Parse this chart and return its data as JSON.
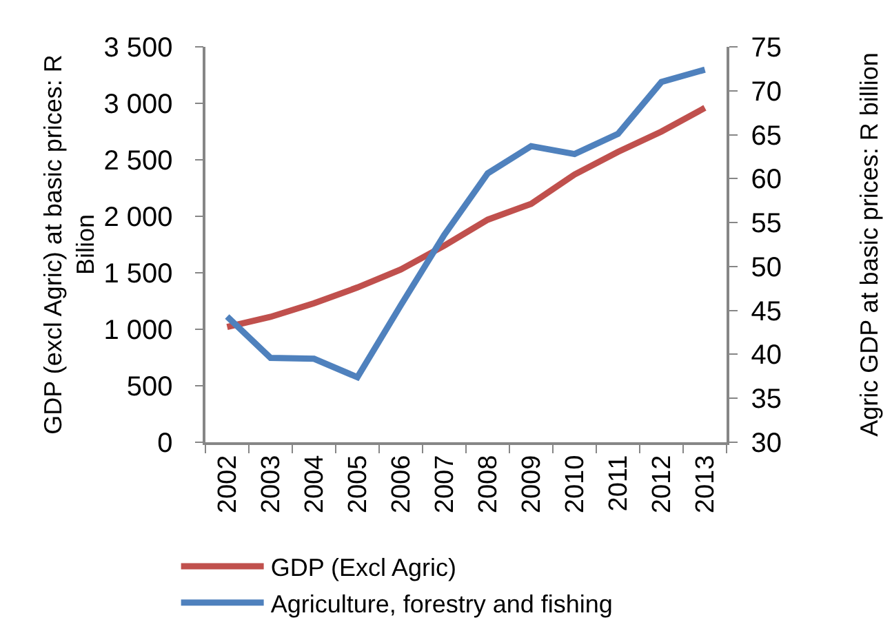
{
  "chart_data": {
    "type": "line",
    "categories": [
      "2002",
      "2003",
      "2004",
      "2005",
      "2006",
      "2007",
      "2008",
      "2009",
      "2010",
      "2011",
      "2012",
      "2013"
    ],
    "series": [
      {
        "name": "GDP (Excl Agric)",
        "color": "#c0504d",
        "values": [
          1020,
          1110,
          1230,
          1370,
          1530,
          1740,
          1970,
          2110,
          2370,
          2570,
          2750,
          2960
        ]
      },
      {
        "name": "Agriculture, forestry and fishing",
        "color": "#4f81bd",
        "axis": "y2",
        "values": [
          44.3,
          39.6,
          39.5,
          37.4,
          45.6,
          53.6,
          60.6,
          63.7,
          62.8,
          65.1,
          71.0,
          72.4
        ]
      }
    ],
    "ylabel": "GDP (excl Agric) at basic prices: R Bilion",
    "y2label": "Agric GDP at basic prices: R billion",
    "ylim": [
      0,
      3500
    ],
    "yticks": [
      0,
      500,
      {
        "value": 1000,
        "label": "1 000"
      },
      {
        "value": 1500,
        "label": "1 500"
      },
      {
        "value": 2000,
        "label": "2 000"
      },
      {
        "value": 2500,
        "label": "2 500"
      },
      {
        "value": 3000,
        "label": "3 000"
      },
      {
        "value": 3500,
        "label": "3 500"
      }
    ],
    "y2lim": [
      30,
      75
    ],
    "y2ticks": [
      30,
      35,
      40,
      45,
      50,
      55,
      60,
      65,
      70,
      75
    ],
    "legend": "bottom left",
    "grid": false
  }
}
